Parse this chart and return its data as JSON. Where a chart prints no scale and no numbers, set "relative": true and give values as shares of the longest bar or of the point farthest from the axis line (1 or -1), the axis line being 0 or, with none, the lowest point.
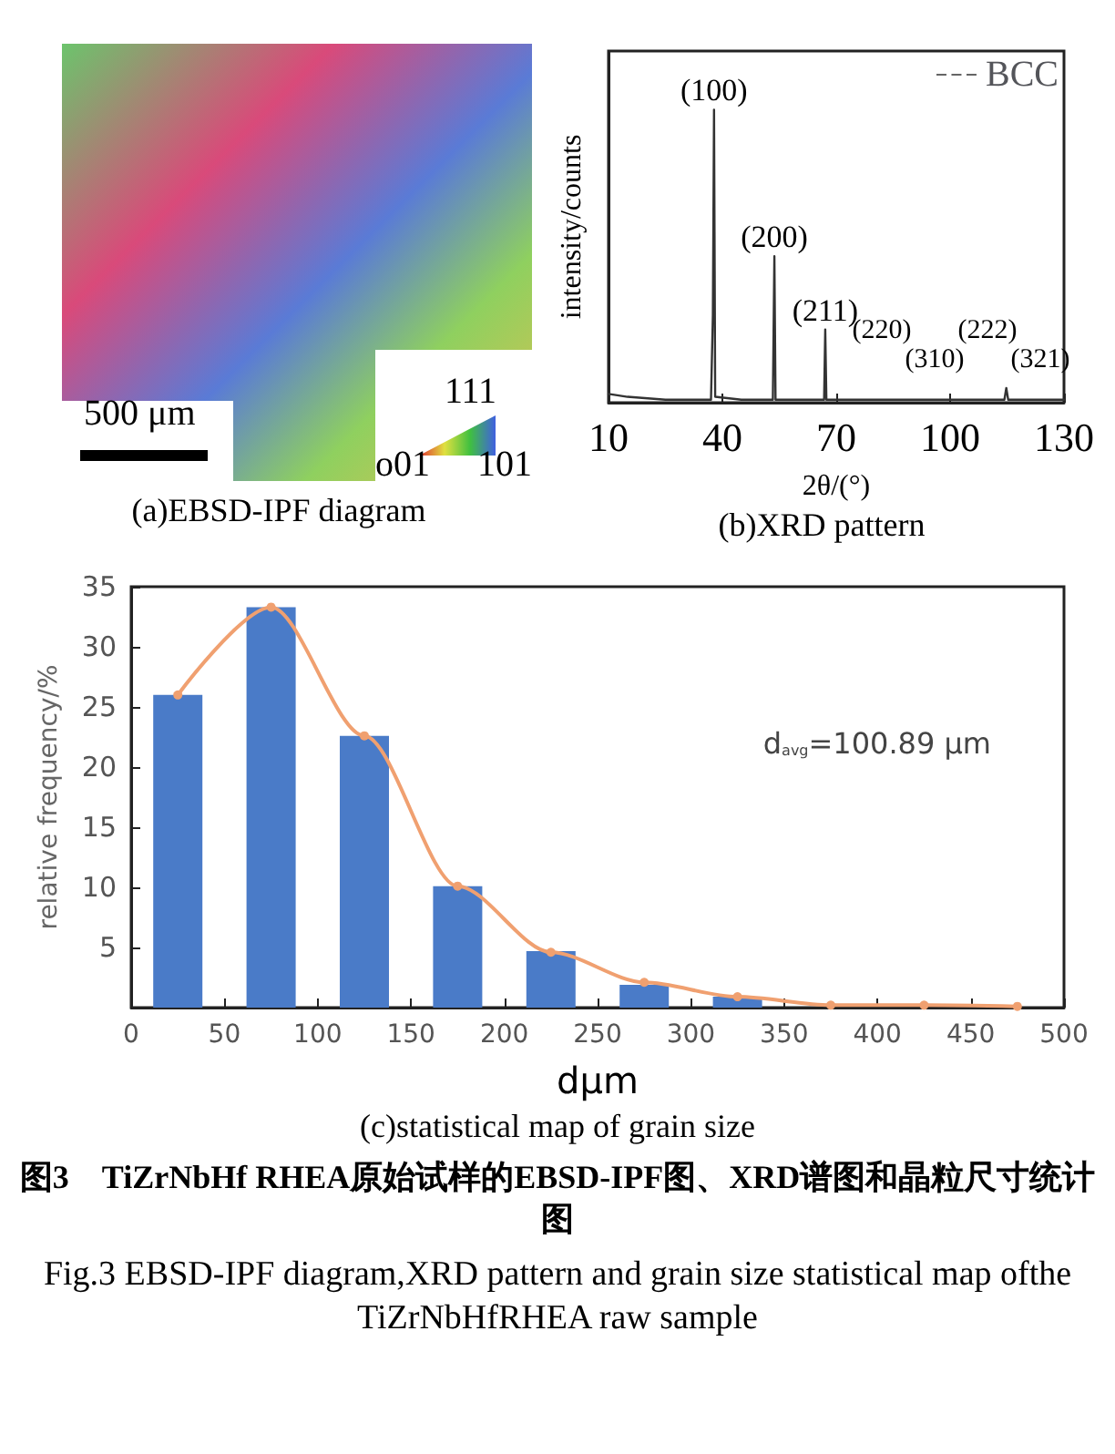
{
  "chart_data": [
    {
      "type": "other",
      "title": "(a)EBSD-IPF diagram",
      "annotations": [
        "500 μm",
        "111",
        "o01",
        "101"
      ]
    },
    {
      "type": "line",
      "title": "(b)XRD pattern",
      "xlabel": "2θ/(°)",
      "ylabel": "intensity/counts",
      "relative": true,
      "xlim": [
        10,
        130
      ],
      "xticks": [
        10,
        40,
        70,
        100,
        130
      ],
      "legend": "top right",
      "grid": false,
      "marker": "none",
      "x": [
        10,
        15,
        25,
        37,
        37.5,
        37.8,
        38.1,
        45,
        53.3,
        53.7,
        54,
        66.8,
        67.1,
        67.4,
        80,
        100,
        114.3,
        114.8,
        115.3,
        130
      ],
      "series": [
        {
          "name": "BCC",
          "color": "#333333",
          "values": [
            0.03,
            0.02,
            0.01,
            0.01,
            0.3,
            1,
            0.02,
            0.01,
            0.01,
            0.5,
            0.01,
            0.01,
            0.25,
            0.01,
            0.01,
            0.01,
            0.01,
            0.05,
            0.01,
            0.01
          ]
        }
      ],
      "annotations": [
        {
          "text": "(100)",
          "x": 37.8,
          "y": 1
        },
        {
          "text": "(200)",
          "x": 53.7,
          "y": 0.5
        },
        {
          "text": "(211)",
          "x": 67.1,
          "y": 0.25
        },
        "(220)",
        "(310)",
        "(222)",
        "(321)"
      ]
    },
    {
      "type": "bar",
      "title": "(c)statistical map of grain size",
      "xlabel": "dμm",
      "ylabel": "relative frequency/%",
      "xlim": [
        0,
        500
      ],
      "xticks": [
        0,
        50,
        100,
        150,
        200,
        250,
        300,
        350,
        400,
        450,
        500
      ],
      "ylim": [
        0,
        35
      ],
      "yticks": [
        5,
        10,
        15,
        20,
        25,
        30,
        35
      ],
      "grid": false,
      "legend": false,
      "marker": "circle",
      "x": [
        25,
        75,
        125,
        175,
        225,
        275,
        325,
        375,
        425,
        475
      ],
      "series": [
        {
          "color": "#4a7bc8",
          "values": [
            26,
            33.3,
            22.6,
            10.1,
            4.7,
            1.9,
            0.9,
            null,
            null,
            null
          ]
        },
        {
          "type": "line",
          "color": "#f0a070",
          "values": [
            26,
            33.3,
            22.6,
            10.1,
            4.6,
            2.1,
            0.9,
            0.2,
            0.2,
            0.1
          ]
        }
      ],
      "annotations": [
        "d$_{avg}$=100.89 μm",
        "图3　TiZrNbHf RHEA原始试样的EBSD-IPF图、XRD谱图和晶粒尺寸统计图",
        "Fig.3 EBSD-IPF diagram,XRD pattern and grain size statistical map ofthe TiZrNbHfRHEA raw sample"
      ]
    }
  ]
}
